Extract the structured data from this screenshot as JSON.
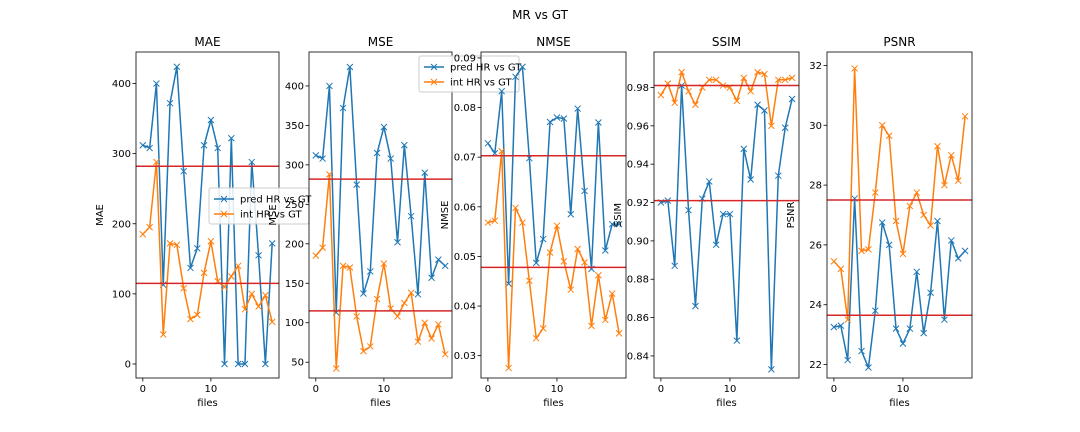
{
  "figure": {
    "suptitle": "MR vs GT",
    "series_colors": {
      "pred HR vs GT": "#1f77b4",
      "int HR vs GT": "#ff7f0e"
    },
    "hline_color": "#d62728"
  },
  "chart_data": [
    {
      "type": "line",
      "title": "MAE",
      "xlabel": "files",
      "ylabel": "MAE",
      "xlim": [
        -1,
        20
      ],
      "ylim": [
        -20,
        445
      ],
      "xticks": [
        0,
        10
      ],
      "yticks": [
        0,
        100,
        200,
        300,
        400
      ],
      "legend": {
        "show": true,
        "placement": "center-right"
      },
      "x": [
        0,
        1,
        2,
        3,
        4,
        5,
        6,
        7,
        8,
        9,
        10,
        11,
        12,
        13,
        14,
        15,
        16,
        17,
        18,
        19
      ],
      "series": [
        {
          "name": "pred HR vs GT",
          "color": "#1f77b4",
          "values": [
            312,
            308,
            400,
            113,
            372,
            424,
            275,
            137,
            165,
            312,
            348,
            308,
            0,
            322,
            0,
            0,
            288,
            155,
            0,
            172
          ]
        },
        {
          "name": "int HR vs GT",
          "color": "#ff7f0e",
          "values": [
            185,
            195,
            288,
            42,
            172,
            170,
            108,
            64,
            70,
            130,
            175,
            118,
            110,
            125,
            140,
            78,
            100,
            82,
            98,
            60
          ]
        }
      ],
      "hlines": [
        282,
        115
      ]
    },
    {
      "type": "line",
      "title": "MSE",
      "xlabel": "files",
      "ylabel": "MSE",
      "xlim": [
        -1,
        20
      ],
      "ylim": [
        30,
        443
      ],
      "xticks": [
        0,
        10
      ],
      "yticks": [
        50,
        100,
        150,
        200,
        250,
        300,
        350,
        400
      ],
      "legend": {
        "show": true,
        "placement": "top-right"
      },
      "x": [
        0,
        1,
        2,
        3,
        4,
        5,
        6,
        7,
        8,
        9,
        10,
        11,
        12,
        13,
        14,
        15,
        16,
        17,
        18,
        19
      ],
      "series": [
        {
          "name": "pred HR vs GT",
          "color": "#1f77b4",
          "values": [
            312,
            308,
            400,
            113,
            372,
            424,
            275,
            137,
            165,
            315,
            348,
            308,
            202,
            325,
            235,
            136,
            290,
            157,
            180,
            172
          ]
        },
        {
          "name": "int HR vs GT",
          "color": "#ff7f0e",
          "values": [
            185,
            195,
            288,
            42,
            172,
            170,
            108,
            64,
            70,
            130,
            175,
            118,
            108,
            125,
            138,
            76,
            100,
            80,
            98,
            60
          ]
        }
      ],
      "hlines": [
        282,
        115
      ]
    },
    {
      "type": "line",
      "title": "NMSE",
      "xlabel": "files",
      "ylabel": "NMSE",
      "xlim": [
        -1,
        20
      ],
      "ylim": [
        0.0255,
        0.0912
      ],
      "xticks": [
        0,
        10
      ],
      "yticks": [
        0.03,
        0.04,
        0.05,
        0.06,
        0.07,
        0.08,
        0.09
      ],
      "legend": {
        "show": false
      },
      "x": [
        0,
        1,
        2,
        3,
        4,
        5,
        6,
        7,
        8,
        9,
        10,
        11,
        12,
        13,
        14,
        15,
        16,
        17,
        18,
        19
      ],
      "series": [
        {
          "name": "pred HR vs GT",
          "color": "#1f77b4",
          "values": [
            0.0728,
            0.0708,
            0.0833,
            0.0445,
            0.0862,
            0.0882,
            0.0698,
            0.0487,
            0.0535,
            0.0771,
            0.078,
            0.0778,
            0.0585,
            0.0798,
            0.0632,
            0.0475,
            0.077,
            0.0512,
            0.0565,
            0.0565
          ]
        },
        {
          "name": "int HR vs GT",
          "color": "#ff7f0e",
          "values": [
            0.0568,
            0.0572,
            0.0712,
            0.0275,
            0.0598,
            0.0568,
            0.0451,
            0.0335,
            0.0355,
            0.0508,
            0.0562,
            0.049,
            0.0433,
            0.0515,
            0.0488,
            0.036,
            0.0462,
            0.0372,
            0.0425,
            0.0345
          ]
        }
      ],
      "hlines": [
        0.0703,
        0.0478
      ]
    },
    {
      "type": "line",
      "title": "SSIM",
      "xlabel": "files",
      "ylabel": "SSIM",
      "xlim": [
        -1,
        20
      ],
      "ylim": [
        0.8285,
        0.9985
      ],
      "xticks": [
        0,
        10
      ],
      "yticks": [
        0.84,
        0.86,
        0.88,
        0.9,
        0.92,
        0.94,
        0.96,
        0.98
      ],
      "legend": {
        "show": false
      },
      "x": [
        0,
        1,
        2,
        3,
        4,
        5,
        6,
        7,
        8,
        9,
        10,
        11,
        12,
        13,
        14,
        15,
        16,
        17,
        18,
        19
      ],
      "series": [
        {
          "name": "pred HR vs GT",
          "color": "#1f77b4",
          "values": [
            0.92,
            0.921,
            0.887,
            0.981,
            0.916,
            0.866,
            0.922,
            0.931,
            0.898,
            0.914,
            0.914,
            0.848,
            0.948,
            0.932,
            0.971,
            0.968,
            0.833,
            0.934,
            0.959,
            0.974
          ]
        },
        {
          "name": "int HR vs GT",
          "color": "#ff7f0e",
          "values": [
            0.976,
            0.982,
            0.972,
            0.988,
            0.978,
            0.971,
            0.98,
            0.984,
            0.984,
            0.981,
            0.98,
            0.973,
            0.985,
            0.978,
            0.988,
            0.987,
            0.96,
            0.984,
            0.984,
            0.985
          ]
        }
      ],
      "hlines": [
        0.981,
        0.921
      ]
    },
    {
      "type": "line",
      "title": "PSNR",
      "xlabel": "files",
      "ylabel": "PSNR",
      "xlim": [
        -1,
        20
      ],
      "ylim": [
        21.55,
        32.45
      ],
      "xticks": [
        0,
        10
      ],
      "yticks": [
        22,
        24,
        26,
        28,
        30,
        32
      ],
      "legend": {
        "show": false
      },
      "x": [
        0,
        1,
        2,
        3,
        4,
        5,
        6,
        7,
        8,
        9,
        10,
        11,
        12,
        13,
        14,
        15,
        16,
        17,
        18,
        19
      ],
      "series": [
        {
          "name": "pred HR vs GT",
          "color": "#1f77b4",
          "values": [
            23.25,
            23.3,
            22.15,
            27.55,
            22.45,
            21.9,
            23.8,
            26.75,
            26.0,
            23.2,
            22.7,
            23.2,
            25.1,
            23.05,
            24.4,
            26.8,
            23.5,
            26.15,
            25.55,
            25.8
          ]
        },
        {
          "name": "int HR vs GT",
          "color": "#ff7f0e",
          "values": [
            25.45,
            25.2,
            23.5,
            31.9,
            25.8,
            25.85,
            27.75,
            30.0,
            29.65,
            26.8,
            25.7,
            27.3,
            27.75,
            27.0,
            26.65,
            29.3,
            28.0,
            29.0,
            28.15,
            30.3
          ]
        }
      ],
      "hlines": [
        27.5,
        23.65
      ]
    }
  ]
}
